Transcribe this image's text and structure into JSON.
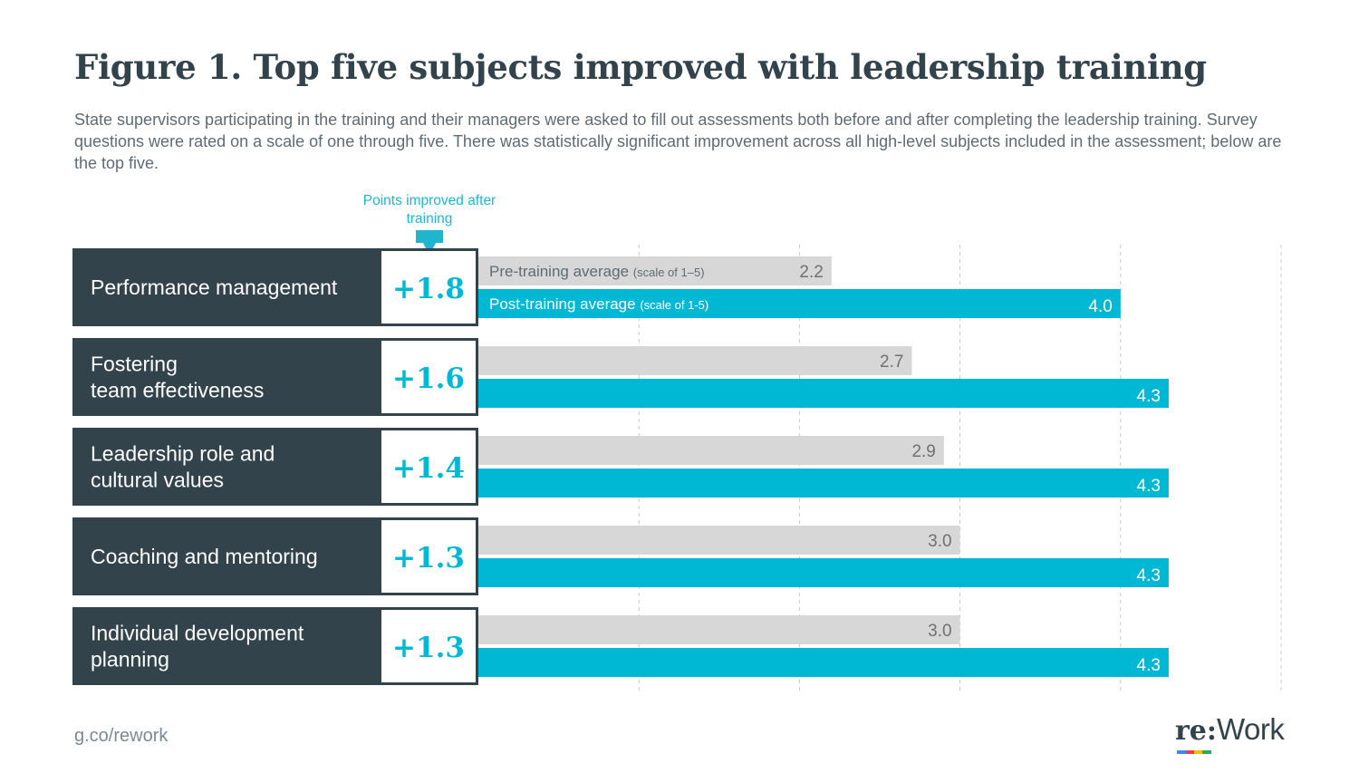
{
  "title": "Figure 1. Top five subjects improved with leadership training",
  "subtitle": "State supervisors participating in the training and their managers were asked to fill out assessments both before and after completing the leadership training. Survey questions were rated on a scale of one through five. There was statistically significant improvement across all high-level subjects included in the assessment; below are the top five.",
  "column_header": "Points improved after training",
  "footer": {
    "url": "g.co/rework"
  },
  "logo": {
    "re": "re:",
    "work": "Work"
  },
  "colors": {
    "dark": "#33434c",
    "accent": "#00b8d4",
    "pre_bar": "#d7d7d7",
    "label_text": "#ffffff",
    "pre_value_text": "#707070",
    "grid": "#c8c8c8"
  },
  "chart_data": {
    "type": "bar",
    "orientation": "horizontal",
    "categories": [
      "Performance management",
      "Fostering\nteam effectiveness",
      "Leadership role and\ncultural values",
      "Coaching and mentoring",
      "Individual development\nplanning"
    ],
    "improvements": [
      "+1.8",
      "+1.6",
      "+1.4",
      "+1.3",
      "+1.3"
    ],
    "series": [
      {
        "name": "Pre-training average",
        "qualifier": "(scale of 1–5)",
        "values": [
          2.2,
          2.7,
          2.9,
          3.0,
          3.0
        ],
        "color": "#d7d7d7"
      },
      {
        "name": "Post-training average",
        "qualifier": "(scale of 1-5)",
        "values": [
          4.0,
          4.3,
          4.3,
          4.3,
          4.3
        ],
        "color": "#00b8d4"
      }
    ],
    "xlim": [
      0,
      5
    ],
    "grid": true
  }
}
